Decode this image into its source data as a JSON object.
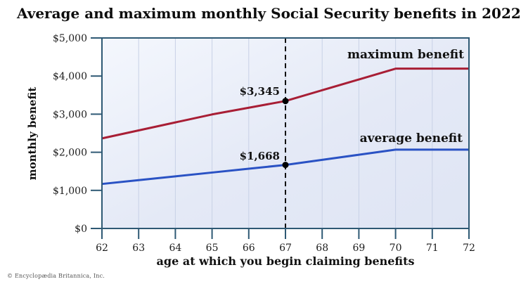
{
  "title": "Average and maximum monthly Social Security benefits in 2022",
  "copyright": "© Encyclopædia Britannica, Inc.",
  "colors": {
    "axis": "#2e5974",
    "grid": "#c8d1e6",
    "maximum_line": "#a81e35",
    "average_line": "#2a52c4",
    "reference_line": "#111111",
    "dot": "#000000",
    "plot_bg_light": "#f4f7fd",
    "plot_bg_dark": "#dfe5f4"
  },
  "chart_data": {
    "type": "line",
    "title": "Average and maximum monthly Social Security benefits in 2022",
    "xlabel": "age at which you begin claiming benefits",
    "ylabel": "monthly benefit",
    "x": [
      62,
      63,
      64,
      65,
      66,
      67,
      68,
      69,
      70,
      71,
      72
    ],
    "x_tick_labels": [
      "62",
      "63",
      "64",
      "65",
      "66",
      "67",
      "68",
      "69",
      "70",
      "71",
      "72"
    ],
    "xlim": [
      62,
      72
    ],
    "ylim": [
      0,
      5000
    ],
    "y_ticks": [
      {
        "value": 5000,
        "label": "$5,000"
      },
      {
        "value": 4000,
        "label": "$4,000"
      },
      {
        "value": 3000,
        "label": "$3,000"
      },
      {
        "value": 2000,
        "label": "$2,000"
      },
      {
        "value": 1000,
        "label": "$1,000"
      },
      {
        "value": 0,
        "label": "$0"
      }
    ],
    "grid": "vertical-only",
    "legend_position": "inline-above-lines",
    "series": [
      {
        "name": "maximum benefit",
        "color": "#a81e35",
        "values": [
          2364,
          2574,
          2784,
          2993,
          3169,
          3345,
          3628,
          3911,
          4194,
          4194,
          4194
        ]
      },
      {
        "name": "average benefit",
        "color": "#2a52c4",
        "values": [
          1168,
          1268,
          1368,
          1468,
          1568,
          1668,
          1801,
          1935,
          2068,
          2068,
          2068
        ]
      }
    ],
    "reference_line": {
      "x": 67,
      "style": "dashed"
    },
    "annotations": [
      {
        "x": 67,
        "y": 3345,
        "label": "$3,345",
        "series": "maximum benefit"
      },
      {
        "x": 67,
        "y": 1668,
        "label": "$1,668",
        "series": "average benefit"
      }
    ]
  }
}
